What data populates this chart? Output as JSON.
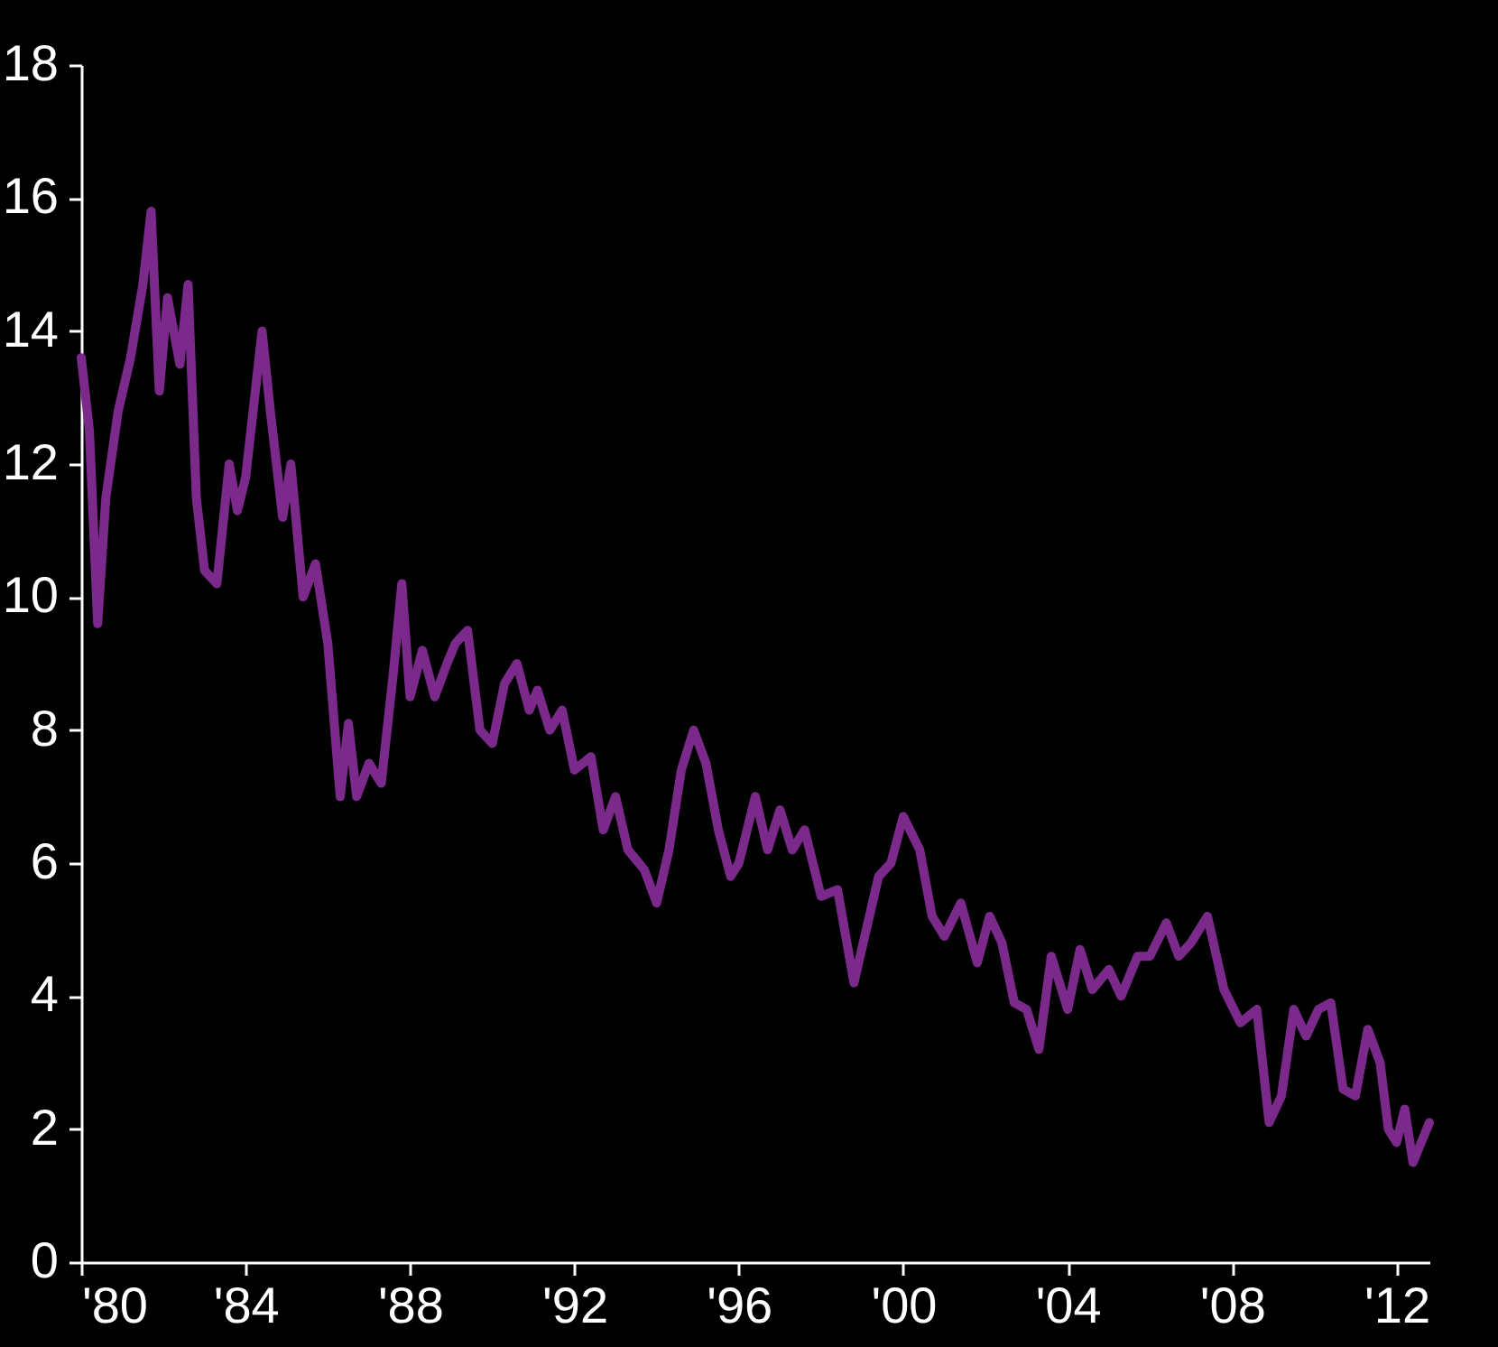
{
  "chart_data": {
    "type": "line",
    "xlim": [
      1980,
      2012.8
    ],
    "ylim": [
      0,
      18
    ],
    "xticks": [
      {
        "value": 1980,
        "label": "'80"
      },
      {
        "value": 1984,
        "label": "'84"
      },
      {
        "value": 1988,
        "label": "'88"
      },
      {
        "value": 1992,
        "label": "'92"
      },
      {
        "value": 1996,
        "label": "'96"
      },
      {
        "value": 2000,
        "label": "'00"
      },
      {
        "value": 2004,
        "label": "'04"
      },
      {
        "value": 2008,
        "label": "'08"
      },
      {
        "value": 2012,
        "label": "'12"
      }
    ],
    "yticks": [
      0,
      2,
      4,
      6,
      8,
      10,
      12,
      14,
      16,
      18
    ],
    "grid": false,
    "line_style": "solid",
    "marker": "none",
    "x": [
      1980.0,
      1980.2,
      1980.4,
      1980.6,
      1980.9,
      1981.2,
      1981.5,
      1981.7,
      1981.9,
      1982.1,
      1982.4,
      1982.6,
      1982.8,
      1983.0,
      1983.3,
      1983.6,
      1983.8,
      1984.0,
      1984.4,
      1984.6,
      1984.9,
      1985.1,
      1985.4,
      1985.7,
      1986.0,
      1986.3,
      1986.5,
      1986.7,
      1987.0,
      1987.3,
      1987.6,
      1987.8,
      1988.0,
      1988.3,
      1988.6,
      1988.9,
      1989.1,
      1989.4,
      1989.7,
      1990.0,
      1990.3,
      1990.6,
      1990.9,
      1991.1,
      1991.4,
      1991.7,
      1992.0,
      1992.4,
      1992.7,
      1993.0,
      1993.3,
      1993.7,
      1994.0,
      1994.3,
      1994.6,
      1994.9,
      1995.2,
      1995.5,
      1995.8,
      1996.0,
      1996.4,
      1996.7,
      1997.0,
      1997.3,
      1997.6,
      1998.0,
      1998.4,
      1998.8,
      1999.1,
      1999.4,
      1999.7,
      2000.0,
      2000.4,
      2000.7,
      2001.0,
      2001.4,
      2001.8,
      2002.1,
      2002.4,
      2002.7,
      2003.0,
      2003.3,
      2003.6,
      2004.0,
      2004.3,
      2004.6,
      2005.0,
      2005.3,
      2005.7,
      2006.0,
      2006.4,
      2006.7,
      2007.0,
      2007.4,
      2007.8,
      2008.2,
      2008.6,
      2008.9,
      2009.2,
      2009.5,
      2009.8,
      2010.1,
      2010.4,
      2010.7,
      2011.0,
      2011.3,
      2011.6,
      2011.8,
      2012.0,
      2012.2,
      2012.4,
      2012.6,
      2012.8
    ],
    "series": [
      {
        "color": "#7b2a8c",
        "values": [
          13.6,
          12.5,
          9.6,
          11.5,
          12.8,
          13.6,
          14.7,
          15.8,
          13.1,
          14.5,
          13.5,
          14.7,
          11.5,
          10.4,
          10.2,
          12.0,
          11.3,
          11.8,
          14.0,
          12.8,
          11.2,
          12.0,
          10.0,
          10.5,
          9.3,
          7.0,
          8.1,
          7.0,
          7.5,
          7.2,
          8.9,
          10.2,
          8.5,
          9.2,
          8.5,
          9.0,
          9.3,
          9.5,
          8.0,
          7.8,
          8.7,
          9.0,
          8.3,
          8.6,
          8.0,
          8.3,
          7.4,
          7.6,
          6.5,
          7.0,
          6.2,
          5.9,
          5.4,
          6.2,
          7.4,
          8.0,
          7.5,
          6.5,
          5.8,
          6.0,
          7.0,
          6.2,
          6.8,
          6.2,
          6.5,
          5.5,
          5.6,
          4.2,
          5.0,
          5.8,
          6.0,
          6.7,
          6.2,
          5.2,
          4.9,
          5.4,
          4.5,
          5.2,
          4.8,
          3.9,
          3.8,
          3.2,
          4.6,
          3.8,
          4.7,
          4.1,
          4.4,
          4.0,
          4.6,
          4.6,
          5.1,
          4.6,
          4.8,
          5.2,
          4.1,
          3.6,
          3.8,
          2.1,
          2.5,
          3.8,
          3.4,
          3.8,
          3.9,
          2.6,
          2.5,
          3.5,
          3.0,
          2.0,
          1.8,
          2.3,
          1.5,
          1.8,
          2.1
        ]
      }
    ]
  }
}
